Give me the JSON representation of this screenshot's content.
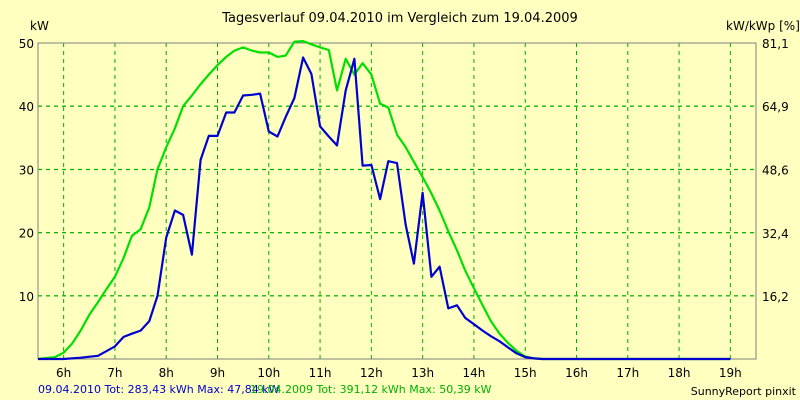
{
  "chart_data": {
    "type": "line",
    "title": "Tagesverlauf 09.04.2010 im Vergleich zum 19.04.2009",
    "ylabel_left": "kW",
    "ylabel_right": "kW/kWp [%]",
    "xlim": [
      5.5,
      19.5
    ],
    "ylim": [
      0,
      50
    ],
    "x_ticks": [
      6,
      7,
      8,
      9,
      10,
      11,
      12,
      13,
      14,
      15,
      16,
      17,
      18,
      19
    ],
    "x_tick_labels": [
      "6h",
      "7h",
      "8h",
      "9h",
      "10h",
      "11h",
      "12h",
      "13h",
      "14h",
      "15h",
      "16h",
      "17h",
      "18h",
      "19h"
    ],
    "y_ticks_left": [
      10,
      20,
      30,
      40,
      50
    ],
    "y_tick_labels_left": [
      "10",
      "20",
      "30",
      "40",
      "50"
    ],
    "y_ticks_right": [
      16.2,
      32.4,
      48.6,
      64.9,
      81.1
    ],
    "y_tick_labels_right": [
      "16,2",
      "32,4",
      "48,6",
      "64,9",
      "81,1"
    ],
    "y_right_max": 81.1,
    "grid": true,
    "colors": {
      "background": "#ffffc0",
      "plot_border": "#808080",
      "grid": "#00b000",
      "series_2010": "#0000d0",
      "series_2009": "#00e000"
    },
    "series": [
      {
        "name": "09.04.2010",
        "color": "#0000d0",
        "x": [
          5.5,
          6.0,
          6.33,
          6.67,
          7.0,
          7.17,
          7.33,
          7.5,
          7.67,
          7.83,
          8.0,
          8.17,
          8.33,
          8.5,
          8.67,
          8.83,
          9.0,
          9.17,
          9.33,
          9.5,
          9.67,
          9.83,
          10.0,
          10.17,
          10.33,
          10.5,
          10.67,
          10.83,
          11.0,
          11.17,
          11.33,
          11.5,
          11.67,
          11.83,
          12.0,
          12.17,
          12.33,
          12.5,
          12.67,
          12.83,
          13.0,
          13.17,
          13.33,
          13.5,
          13.67,
          13.83,
          14.0,
          14.17,
          14.33,
          14.5,
          14.67,
          14.83,
          15.0,
          15.17,
          15.33,
          15.5,
          15.67,
          15.83,
          16.0,
          16.17,
          16.33,
          16.5,
          16.67,
          16.83,
          17.0,
          17.17,
          17.33,
          17.5,
          17.67,
          17.83,
          18.0,
          18.17,
          18.33,
          18.5,
          18.67,
          18.83,
          19.0
        ],
        "y": [
          0,
          0,
          0.2,
          0.5,
          2,
          3.5,
          4,
          4.5,
          6,
          10,
          19.2,
          23.5,
          22.8,
          16.5,
          31.5,
          35.3,
          35.3,
          39,
          39,
          41.7,
          41.8,
          42,
          36,
          35.2,
          38.3,
          41.3,
          47.7,
          45.1,
          36.8,
          35.2,
          33.8,
          42.5,
          47.5,
          30.6,
          30.7,
          25.3,
          31.3,
          31.0,
          21.2,
          15.1,
          26.3,
          13,
          14.6,
          8,
          8.5,
          6.5,
          5.5,
          4.5,
          3.6,
          2.8,
          1.8,
          0.9,
          0.3,
          0.1,
          0,
          0,
          0,
          0,
          0,
          0,
          0,
          0,
          0,
          0,
          0,
          0,
          0,
          0,
          0,
          0,
          0,
          0,
          0,
          0,
          0,
          0,
          0
        ]
      },
      {
        "name": "19.04.2009",
        "color": "#00e000",
        "x": [
          5.5,
          5.83,
          6.0,
          6.17,
          6.33,
          6.5,
          6.67,
          6.83,
          7.0,
          7.17,
          7.33,
          7.5,
          7.67,
          7.83,
          8.0,
          8.17,
          8.33,
          8.5,
          8.67,
          8.83,
          9.0,
          9.17,
          9.33,
          9.5,
          9.67,
          9.83,
          10.0,
          10.17,
          10.33,
          10.5,
          10.67,
          10.83,
          11.0,
          11.17,
          11.33,
          11.5,
          11.67,
          11.83,
          12.0,
          12.17,
          12.33,
          12.5,
          12.67,
          12.83,
          13.0,
          13.17,
          13.33,
          13.5,
          13.67,
          13.83,
          14.0,
          14.17,
          14.33,
          14.5,
          14.67,
          14.83,
          15.0,
          15.17,
          15.33,
          15.5,
          15.67,
          15.83,
          16.0,
          16.17,
          16.33,
          16.5,
          16.67,
          16.83,
          17.0,
          17.17,
          17.33,
          17.5,
          17.67,
          17.83,
          18.0,
          18.17,
          18.33,
          18.5,
          18.67,
          18.83,
          19.0
        ],
        "y": [
          0,
          0.3,
          1.0,
          2.5,
          4.5,
          7.0,
          9.0,
          11.0,
          13.0,
          16.0,
          19.5,
          20.5,
          24,
          30,
          33.5,
          36.5,
          40,
          41.7,
          43.5,
          45,
          46.5,
          47.8,
          48.8,
          49.3,
          48.8,
          48.5,
          48.5,
          47.8,
          48.0,
          50.2,
          50.3,
          49.8,
          49.3,
          48.9,
          42.5,
          47.5,
          45.0,
          46.8,
          45.0,
          40.4,
          39.8,
          35.5,
          33.5,
          31.2,
          28.8,
          26.2,
          23.5,
          20.2,
          17.2,
          14.0,
          11.2,
          8.5,
          6.0,
          4.0,
          2.5,
          1.3,
          0.4,
          0.1,
          0,
          0,
          0,
          0,
          0,
          0,
          0,
          0,
          0,
          0,
          0,
          0,
          0,
          0,
          0,
          0,
          0,
          0,
          0,
          0,
          0,
          0,
          0
        ]
      }
    ]
  },
  "footer": {
    "blue_text": "09.04.2010 Tot: 283,43 kWh Max: 47,84 kW",
    "green_text": "19.04.2009 Tot: 391,12 kWh Max: 50,39 kW",
    "credit": "SunnyReport pinxit"
  }
}
